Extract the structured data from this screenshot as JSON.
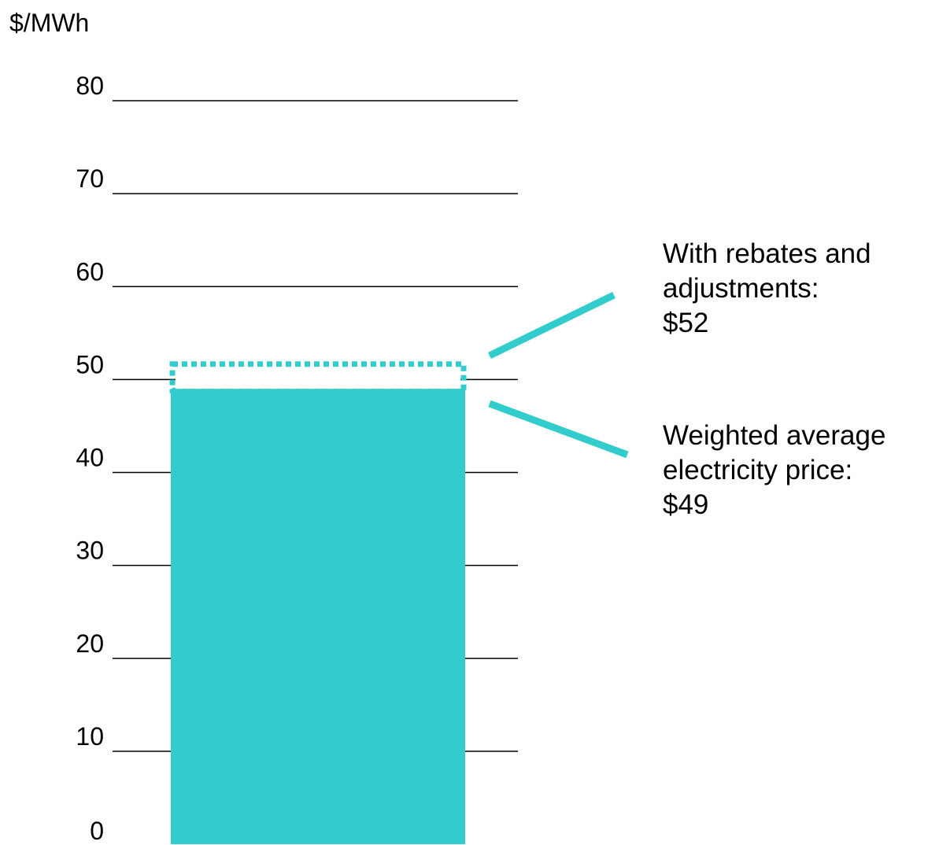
{
  "chart_data": {
    "type": "bar",
    "ylabel": "$/MWh",
    "ylim": [
      0,
      80
    ],
    "yticks": [
      0,
      10,
      20,
      30,
      40,
      50,
      60,
      70,
      80
    ],
    "grid": true,
    "categories": [
      ""
    ],
    "series": [
      {
        "values": [
          49
        ],
        "color": "#33cccc",
        "style": "solid"
      },
      {
        "values": [
          52
        ],
        "color": "#33cccc",
        "style": "dotted-outline"
      }
    ],
    "annotations": [
      {
        "target": 52,
        "lines": [
          "With rebates and",
          "adjustments:",
          "$52"
        ]
      },
      {
        "target": 49,
        "lines": [
          "Weighted average",
          "electricity price:",
          "$49"
        ]
      }
    ]
  },
  "colors": {
    "accent": "#33cccc",
    "grid": "#000000",
    "text": "#000000"
  }
}
